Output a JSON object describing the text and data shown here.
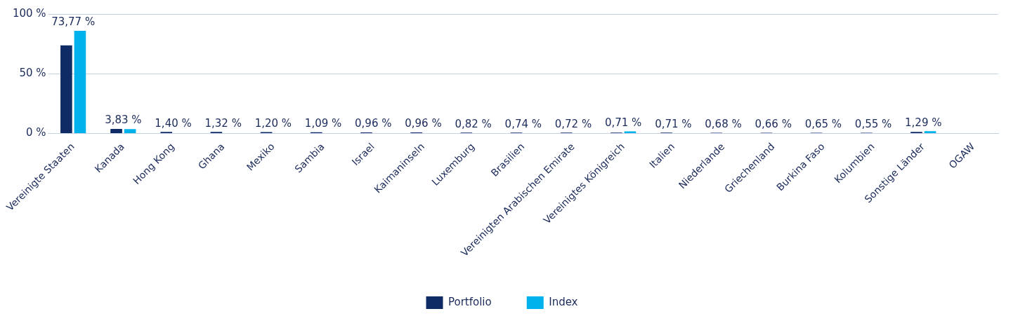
{
  "chart_data": {
    "type": "bar",
    "categories": [
      "Vereinigte Staaten",
      "Kanada",
      "Hong Kong",
      "Ghana",
      "Mexiko",
      "Sambia",
      "Israel",
      "Kaimaninseln",
      "Luxemburg",
      "Brasilien",
      "Vereinigten Arabischen Emirate",
      "Vereinigtes Königreich",
      "Italien",
      "Niederlande",
      "Griechenland",
      "Burkina Faso",
      "Kolumbien",
      "Sonstige Länder",
      "OGAW"
    ],
    "series": [
      {
        "name": "Portfolio",
        "color": "#0f2b66",
        "values": [
          73.77,
          3.83,
          1.4,
          1.32,
          1.2,
          1.09,
          0.96,
          0.96,
          0.82,
          0.74,
          0.72,
          0.71,
          0.71,
          0.68,
          0.66,
          0.65,
          0.55,
          1.29,
          null
        ],
        "value_labels": [
          "73,77 %",
          "3,83 %",
          "1,40 %",
          "1,32 %",
          "1,20 %",
          "1,09 %",
          "0,96 %",
          "0,96 %",
          "0,82 %",
          "0,74 %",
          "0,72 %",
          "0,71 %",
          "0,71 %",
          "0,68 %",
          "0,66 %",
          "0,65 %",
          "0,55 %",
          "1,29 %",
          null
        ]
      },
      {
        "name": "Index",
        "color": "#00b2ec",
        "values": [
          86,
          3.7,
          0,
          0,
          0,
          0,
          0,
          0,
          0,
          0,
          0,
          1.8,
          0,
          0,
          0,
          0,
          0,
          1.9,
          null
        ]
      }
    ],
    "ylim": [
      0,
      100
    ],
    "yticks": [
      {
        "value": 0,
        "label": "0 %"
      },
      {
        "value": 50,
        "label": "50 %"
      },
      {
        "value": 100,
        "label": "100 %"
      }
    ],
    "grid": "y",
    "legend": "bottom"
  }
}
